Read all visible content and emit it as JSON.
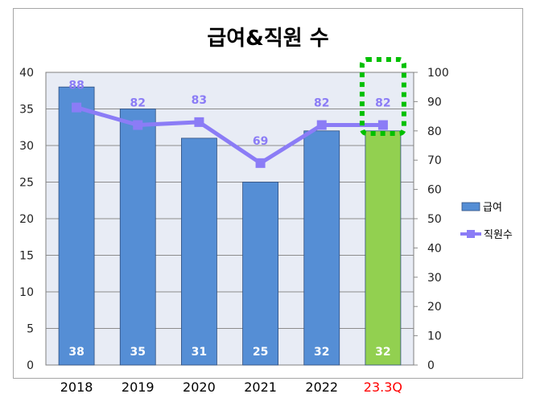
{
  "chart_data": {
    "type": "bar",
    "title": "급여&직원 수",
    "categories": [
      "2018",
      "2019",
      "2020",
      "2021",
      "2022",
      "23.3Q"
    ],
    "highlight_category_color": "#ff0000",
    "series": [
      {
        "name": "급여",
        "axis": "left",
        "type": "bar",
        "values": [
          38,
          35,
          31,
          25,
          32,
          32
        ],
        "color": "#558ed5",
        "highlight_color": "#92d050",
        "highlight_index": 5
      },
      {
        "name": "직원수",
        "axis": "right",
        "type": "line",
        "values": [
          88,
          82,
          83,
          69,
          82,
          82
        ],
        "color": "#8b7cf6"
      }
    ],
    "y_left": {
      "min": 0,
      "max": 40,
      "ticks": [
        "0",
        "5",
        "10",
        "15",
        "20",
        "25",
        "30",
        "35",
        "40"
      ]
    },
    "y_right": {
      "min": 0,
      "max": 100,
      "ticks": [
        "0",
        "10",
        "20",
        "30",
        "40",
        "50",
        "60",
        "70",
        "80",
        "90",
        "100"
      ]
    },
    "grid": true,
    "legend_position": "right",
    "plot_background": "#e8ecf5",
    "annotation": {
      "type": "dotted-box",
      "target": "23.3Q",
      "color": "#00c000"
    }
  }
}
